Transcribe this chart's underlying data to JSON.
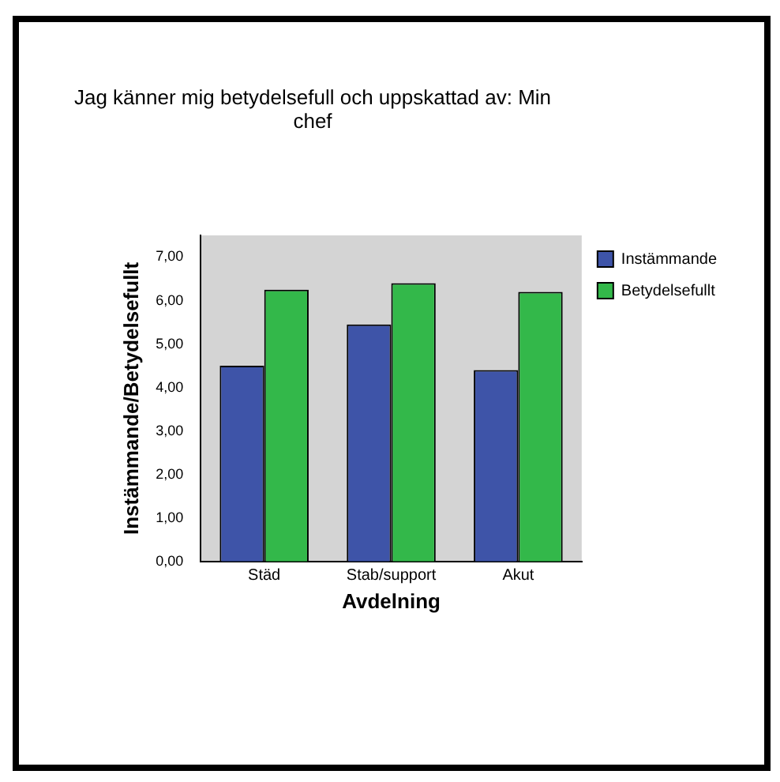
{
  "chart_data": {
    "type": "bar",
    "title": "Jag känner mig betydelsefull och uppskattad av: Min chef",
    "xlabel": "Avdelning",
    "ylabel": "Instämmande/Betydelsefullt",
    "categories": [
      "Städ",
      "Stab/support",
      "Akut"
    ],
    "series": [
      {
        "name": "Instämmande",
        "color": "#3e54a8",
        "values": [
          4.5,
          5.45,
          4.4
        ]
      },
      {
        "name": "Betydelsefullt",
        "color": "#33b84a",
        "values": [
          6.25,
          6.4,
          6.2
        ]
      }
    ],
    "ylim": [
      0,
      7.5
    ],
    "yticks": [
      {
        "value": 0,
        "label": "0,00"
      },
      {
        "value": 1,
        "label": "1,00"
      },
      {
        "value": 2,
        "label": "2,00"
      },
      {
        "value": 3,
        "label": "3,00"
      },
      {
        "value": 4,
        "label": "4,00"
      },
      {
        "value": 5,
        "label": "5,00"
      },
      {
        "value": 6,
        "label": "6,00"
      },
      {
        "value": 7,
        "label": "7,00"
      }
    ],
    "grid": false,
    "legend": "top right"
  }
}
